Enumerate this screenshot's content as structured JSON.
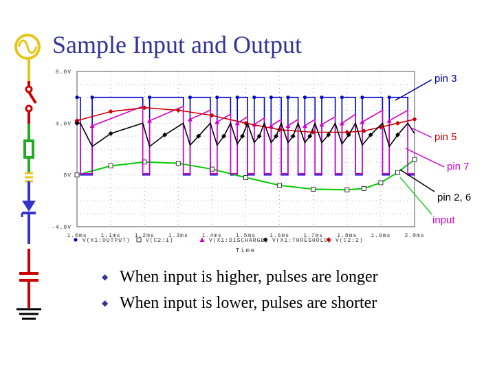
{
  "slide": {
    "title": "Sample Input and Output",
    "bullets": [
      "When input is higher, pulses are longer",
      "When input is lower, pulses are shorter"
    ]
  },
  "callouts": [
    {
      "label": "pin 3",
      "color": "#000099"
    },
    {
      "label": "pin 5",
      "color": "#cc0000"
    },
    {
      "label": "pin 7",
      "color": "#cc00cc"
    },
    {
      "label": "pin 2, 6",
      "color": "#000000"
    },
    {
      "label": "input",
      "color": "#cc00cc"
    }
  ],
  "icons": [
    "ac-source-icon",
    "switch-icon",
    "resistor-icon",
    "inductor-icon",
    "diode-icon",
    "capacitor-icon",
    "ground-icon"
  ],
  "chart_data": {
    "type": "line",
    "title": "",
    "xlabel": "Time",
    "ylabel": "",
    "xlim": [
      1.0,
      2.0
    ],
    "ylim": [
      -4.0,
      8.0
    ],
    "x_ticks": [
      "1.0ms",
      "1.1ms",
      "1.2ms",
      "1.3ms",
      "1.4ms",
      "1.5ms",
      "1.6ms",
      "1.7ms",
      "1.8ms",
      "1.9ms",
      "2.0ms"
    ],
    "x_tick_values": [
      1.0,
      1.1,
      1.2,
      1.3,
      1.4,
      1.5,
      1.6,
      1.7,
      1.8,
      1.9,
      2.0
    ],
    "y_ticks": [
      "8.0V",
      "4.0V",
      "0V",
      "-4.0V"
    ],
    "y_tick_values": [
      8.0,
      4.0,
      0.0,
      -4.0
    ],
    "grid": true,
    "legend_position": "bottom",
    "series": [
      {
        "name": "V(X1:OUTPUT)",
        "color": "#0000cc",
        "marker": "circle",
        "values": [
          [
            1.0,
            6.0
          ],
          [
            1.01,
            6.0
          ],
          [
            1.01,
            0.0
          ],
          [
            1.045,
            0.0
          ],
          [
            1.045,
            6.0
          ],
          [
            1.195,
            6.0
          ],
          [
            1.195,
            0.0
          ],
          [
            1.215,
            0.0
          ],
          [
            1.215,
            6.0
          ],
          [
            1.315,
            6.0
          ],
          [
            1.315,
            0.0
          ],
          [
            1.335,
            0.0
          ],
          [
            1.335,
            6.0
          ],
          [
            1.395,
            6.0
          ],
          [
            1.395,
            0.0
          ],
          [
            1.415,
            0.0
          ],
          [
            1.415,
            6.0
          ],
          [
            1.455,
            6.0
          ],
          [
            1.455,
            0.0
          ],
          [
            1.475,
            0.0
          ],
          [
            1.475,
            6.0
          ],
          [
            1.505,
            6.0
          ],
          [
            1.505,
            0.0
          ],
          [
            1.525,
            0.0
          ],
          [
            1.525,
            6.0
          ],
          [
            1.555,
            6.0
          ],
          [
            1.555,
            0.0
          ],
          [
            1.575,
            0.0
          ],
          [
            1.575,
            6.0
          ],
          [
            1.605,
            6.0
          ],
          [
            1.605,
            0.0
          ],
          [
            1.625,
            0.0
          ],
          [
            1.625,
            6.0
          ],
          [
            1.655,
            6.0
          ],
          [
            1.655,
            0.0
          ],
          [
            1.675,
            0.0
          ],
          [
            1.675,
            6.0
          ],
          [
            1.705,
            6.0
          ],
          [
            1.705,
            0.0
          ],
          [
            1.725,
            0.0
          ],
          [
            1.725,
            6.0
          ],
          [
            1.765,
            6.0
          ],
          [
            1.765,
            0.0
          ],
          [
            1.785,
            0.0
          ],
          [
            1.785,
            6.0
          ],
          [
            1.825,
            6.0
          ],
          [
            1.825,
            0.0
          ],
          [
            1.845,
            0.0
          ],
          [
            1.845,
            6.0
          ],
          [
            1.905,
            6.0
          ],
          [
            1.905,
            0.0
          ],
          [
            1.925,
            0.0
          ],
          [
            1.925,
            6.0
          ],
          [
            1.98,
            6.0
          ],
          [
            1.98,
            0.0
          ],
          [
            2.0,
            0.0
          ]
        ]
      },
      {
        "name": "V(C2:1)",
        "color": "#00cc00",
        "marker": "square",
        "values": [
          [
            1.0,
            0.0
          ],
          [
            1.1,
            0.7
          ],
          [
            1.2,
            1.0
          ],
          [
            1.3,
            0.9
          ],
          [
            1.4,
            0.45
          ],
          [
            1.5,
            -0.2
          ],
          [
            1.6,
            -0.8
          ],
          [
            1.7,
            -1.1
          ],
          [
            1.8,
            -1.15
          ],
          [
            1.85,
            -1.05
          ],
          [
            1.9,
            -0.6
          ],
          [
            1.95,
            0.2
          ],
          [
            2.0,
            1.2
          ]
        ]
      },
      {
        "name": "V(X1:DISCHARGE)",
        "color": "#cc00cc",
        "marker": "triangle",
        "values": [
          [
            1.0,
            4.2
          ],
          [
            1.01,
            4.3
          ],
          [
            1.01,
            0.1
          ],
          [
            1.045,
            0.1
          ],
          [
            1.045,
            3.8
          ],
          [
            1.195,
            5.3
          ],
          [
            1.195,
            0.1
          ],
          [
            1.215,
            0.1
          ],
          [
            1.215,
            4.2
          ],
          [
            1.315,
            5.3
          ],
          [
            1.315,
            0.1
          ],
          [
            1.335,
            0.1
          ],
          [
            1.335,
            4.3
          ],
          [
            1.395,
            5.0
          ],
          [
            1.395,
            0.1
          ],
          [
            1.415,
            0.1
          ],
          [
            1.415,
            4.1
          ],
          [
            1.455,
            4.7
          ],
          [
            1.455,
            0.1
          ],
          [
            1.475,
            0.1
          ],
          [
            1.475,
            4.0
          ],
          [
            1.505,
            4.5
          ],
          [
            1.505,
            0.1
          ],
          [
            1.525,
            0.1
          ],
          [
            1.525,
            3.9
          ],
          [
            1.555,
            4.4
          ],
          [
            1.555,
            0.1
          ],
          [
            1.575,
            0.1
          ],
          [
            1.575,
            3.8
          ],
          [
            1.605,
            4.3
          ],
          [
            1.605,
            0.1
          ],
          [
            1.625,
            0.1
          ],
          [
            1.625,
            3.8
          ],
          [
            1.655,
            4.3
          ],
          [
            1.655,
            0.1
          ],
          [
            1.675,
            0.1
          ],
          [
            1.675,
            3.8
          ],
          [
            1.705,
            4.3
          ],
          [
            1.705,
            0.1
          ],
          [
            1.725,
            0.1
          ],
          [
            1.725,
            3.9
          ],
          [
            1.765,
            4.5
          ],
          [
            1.765,
            0.1
          ],
          [
            1.785,
            0.1
          ],
          [
            1.785,
            4.0
          ],
          [
            1.825,
            4.7
          ],
          [
            1.825,
            0.1
          ],
          [
            1.845,
            0.1
          ],
          [
            1.845,
            4.1
          ],
          [
            1.905,
            5.0
          ],
          [
            1.905,
            0.1
          ],
          [
            1.925,
            0.1
          ],
          [
            1.925,
            4.2
          ],
          [
            1.98,
            5.0
          ],
          [
            1.98,
            0.1
          ],
          [
            2.0,
            0.1
          ]
        ]
      },
      {
        "name": "V(X1:THRESHOLD)",
        "color": "#000000",
        "marker": "diamond",
        "values": [
          [
            1.0,
            4.0
          ],
          [
            1.01,
            4.0
          ],
          [
            1.045,
            2.2
          ],
          [
            1.1,
            3.2
          ],
          [
            1.195,
            4.0
          ],
          [
            1.215,
            2.2
          ],
          [
            1.26,
            3.1
          ],
          [
            1.315,
            4.0
          ],
          [
            1.335,
            2.3
          ],
          [
            1.36,
            3.0
          ],
          [
            1.395,
            4.0
          ],
          [
            1.415,
            2.3
          ],
          [
            1.435,
            3.0
          ],
          [
            1.455,
            4.0
          ],
          [
            1.475,
            2.4
          ],
          [
            1.49,
            3.0
          ],
          [
            1.505,
            4.0
          ],
          [
            1.525,
            2.5
          ],
          [
            1.54,
            3.0
          ],
          [
            1.555,
            4.0
          ],
          [
            1.575,
            2.5
          ],
          [
            1.59,
            3.0
          ],
          [
            1.605,
            4.0
          ],
          [
            1.625,
            2.5
          ],
          [
            1.64,
            3.0
          ],
          [
            1.655,
            4.0
          ],
          [
            1.675,
            2.5
          ],
          [
            1.69,
            3.0
          ],
          [
            1.705,
            4.0
          ],
          [
            1.725,
            2.5
          ],
          [
            1.745,
            3.1
          ],
          [
            1.765,
            4.0
          ],
          [
            1.785,
            2.4
          ],
          [
            1.805,
            3.1
          ],
          [
            1.825,
            4.0
          ],
          [
            1.845,
            2.3
          ],
          [
            1.87,
            3.1
          ],
          [
            1.905,
            4.0
          ],
          [
            1.925,
            2.2
          ],
          [
            1.95,
            3.1
          ],
          [
            1.98,
            4.0
          ],
          [
            2.0,
            3.2
          ]
        ]
      },
      {
        "name": "V(C2:2)",
        "color": "#cc0000",
        "marker": "diamond",
        "values": [
          [
            1.0,
            4.2
          ],
          [
            1.1,
            4.9
          ],
          [
            1.2,
            5.2
          ],
          [
            1.3,
            5.0
          ],
          [
            1.4,
            4.6
          ],
          [
            1.5,
            4.0
          ],
          [
            1.6,
            3.5
          ],
          [
            1.7,
            3.3
          ],
          [
            1.8,
            3.3
          ],
          [
            1.85,
            3.4
          ],
          [
            1.9,
            3.7
          ],
          [
            1.95,
            4.0
          ],
          [
            2.0,
            4.3
          ]
        ]
      }
    ]
  }
}
